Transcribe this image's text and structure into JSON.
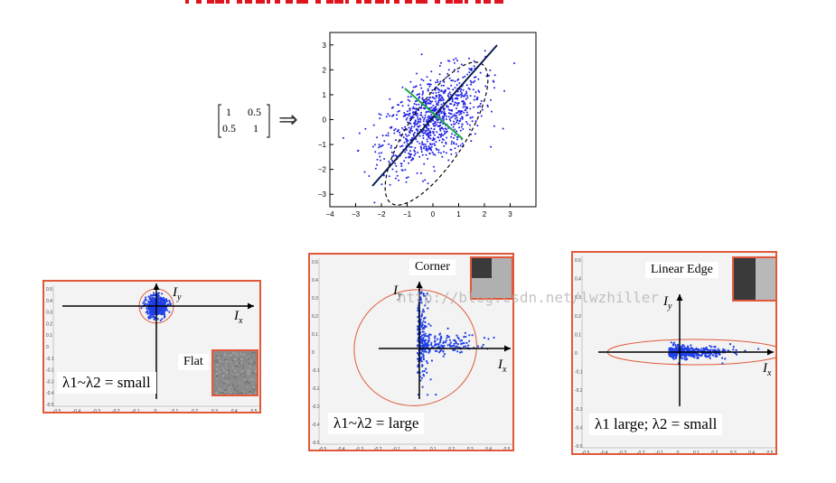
{
  "header_fragment_color": "#e0141e",
  "matrix": {
    "r1c1": "1",
    "r1c2": "0.5",
    "r2c1": "0.5",
    "r2c2": "1"
  },
  "arrow_glyph": "⇒",
  "scatter": {
    "y_ticks": [
      "3",
      "2",
      "1",
      "0",
      "−1",
      "−2",
      "−3"
    ],
    "x_ticks": [
      "−4",
      "−3",
      "−2",
      "−1",
      "0",
      "1",
      "2",
      "3"
    ],
    "dot_color": "#1f1fe6",
    "major_axis_color": "#0b1d4f",
    "minor_axis_color": "#1aa64a"
  },
  "panels": {
    "flat": {
      "axis_y_label": "I",
      "axis_y_sub": "y",
      "axis_x_label": "I",
      "axis_x_sub": "x",
      "title": "Flat",
      "caption": "λ1~λ2 = small"
    },
    "corner": {
      "axis_y_label": "I",
      "axis_y_sub": "y",
      "axis_x_label": "I",
      "axis_x_sub": "x",
      "title": "Corner",
      "caption": "λ1~λ2 = large"
    },
    "edge": {
      "axis_y_label": "I",
      "axis_y_sub": "y",
      "axis_x_label": "I",
      "axis_x_sub": "x",
      "title": "Linear Edge",
      "caption": "λ1 large; λ2 = small"
    },
    "tick_labels_x": [
      "-0.5",
      "-0.4",
      "-0.3",
      "-0.2",
      "-0.1",
      "0",
      "0.1",
      "0.2",
      "0.3",
      "0.4",
      "0.5"
    ],
    "tick_labels_y": [
      "0.5",
      "0.4",
      "0.3",
      "0.2",
      "0.1",
      "0",
      "-0.1",
      "-0.2",
      "-0.3",
      "-0.4",
      "-0.5"
    ],
    "ellipse_color": "#e05a3a",
    "dot_color": "#1f3fe6"
  },
  "watermark": "http://blog.csdn.net/lwzhiller"
}
